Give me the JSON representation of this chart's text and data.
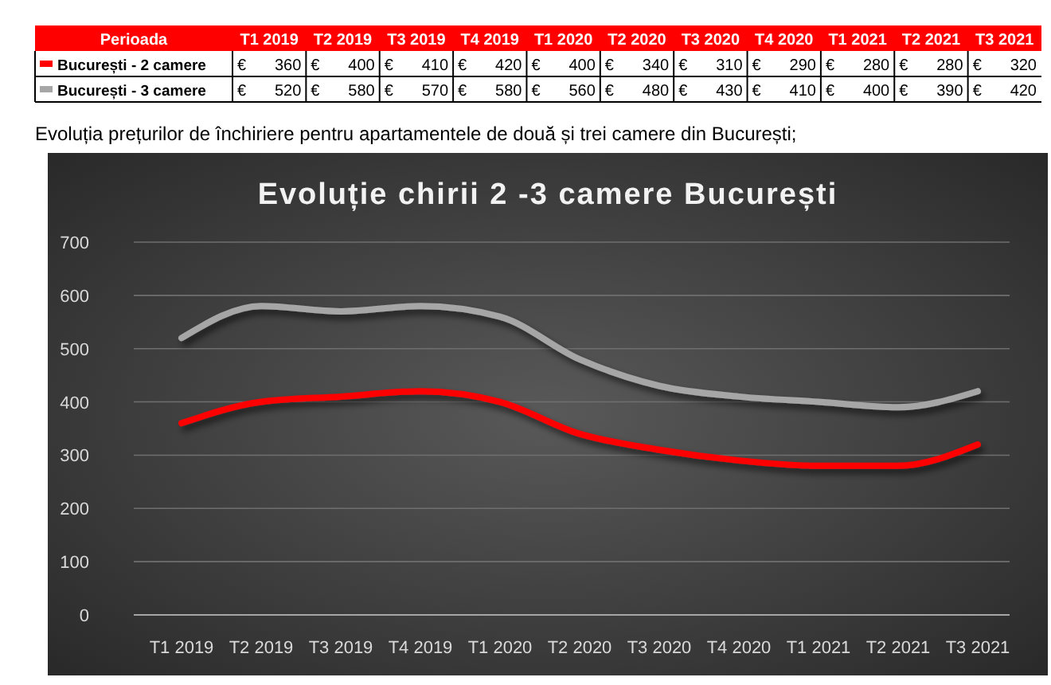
{
  "chart_data": {
    "type": "line",
    "title": "Evoluție chirii 2 -3 camere București",
    "annotations": [
      "Perioada",
      "Evoluția prețurilor de închiriere pentru apartamentele de două și trei camere din București;"
    ],
    "categories": [
      "T1 2019",
      "T2 2019",
      "T3 2019",
      "T4 2019",
      "T1 2020",
      "T2 2020",
      "T3 2020",
      "T4 2020",
      "T1 2021",
      "T2 2021",
      "T3 2021"
    ],
    "series": [
      {
        "name": "București - 2 camere",
        "color": "#ff0000",
        "values": [
          360,
          400,
          410,
          420,
          400,
          340,
          310,
          290,
          280,
          280,
          320
        ],
        "value_labels": [
          "€ 360",
          "€ 400",
          "€ 410",
          "€ 420",
          "€ 400",
          "€ 340",
          "€ 310",
          "€ 290",
          "€ 280",
          "€ 280",
          "€ 320"
        ]
      },
      {
        "name": "București - 3 camere",
        "color": "#a6a6a6",
        "values": [
          520,
          580,
          570,
          580,
          560,
          480,
          430,
          410,
          400,
          390,
          420
        ],
        "value_labels": [
          "€ 520",
          "€ 580",
          "€ 570",
          "€ 580",
          "€ 560",
          "€ 480",
          "€ 430",
          "€ 410",
          "€ 400",
          "€ 390",
          "€ 420"
        ]
      }
    ],
    "ylim": [
      0,
      700
    ],
    "yticks": [
      0,
      100,
      200,
      300,
      400,
      500,
      600,
      700
    ],
    "grid": "y",
    "legend": "top left",
    "line_style": "solid",
    "marker": "none"
  }
}
